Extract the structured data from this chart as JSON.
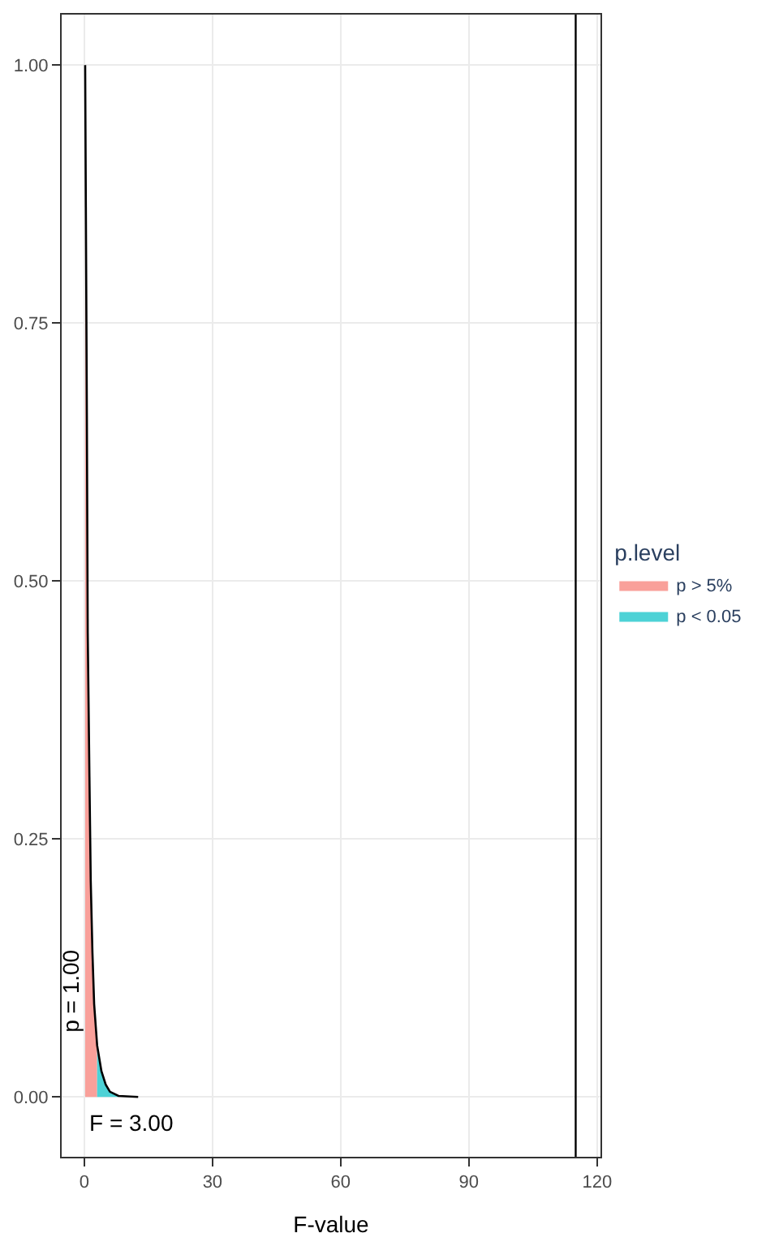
{
  "chart_data": {
    "type": "area",
    "xlabel": "F-value",
    "legend_title": "p.level",
    "legend": "right",
    "grid": true,
    "series": [
      {
        "name": "p > 5%",
        "color": "#f9a09a",
        "x": [
          0.2,
          0.6,
          0.8,
          1.2,
          1.5,
          1.9,
          2.3,
          3.0
        ],
        "values": [
          1.0,
          0.66,
          0.45,
          0.31,
          0.21,
          0.14,
          0.09,
          0.05
        ]
      },
      {
        "name": "p < 0.05",
        "color": "#4dd2d6",
        "x": [
          3.0,
          4.0,
          5.0,
          6.0,
          8.0
        ],
        "values": [
          0.05,
          0.025,
          0.012,
          0.005,
          0.001
        ]
      },
      {
        "type": "line",
        "color": "#000000",
        "x": [
          0.2,
          0.6,
          0.8,
          1.2,
          1.5,
          1.9,
          2.3,
          3.0,
          4.0,
          5.0,
          6.0,
          8.0,
          12.6
        ],
        "values": [
          1.0,
          0.66,
          0.45,
          0.31,
          0.21,
          0.14,
          0.09,
          0.05,
          0.025,
          0.012,
          0.005,
          0.001,
          0.0
        ]
      }
    ],
    "ref_lines": [
      {
        "axis": "x",
        "value": 115,
        "color": "#000000"
      }
    ],
    "annotations": [
      {
        "text": "p = 1.00",
        "x": 0,
        "y": 0.06
      },
      "F = 3.00"
    ],
    "xlim": [
      -5.3,
      120.8
    ],
    "ylim": [
      -0.058,
      1.049
    ],
    "xticks": [
      0,
      30,
      60,
      90,
      120
    ],
    "yticks": [
      {
        "value": 0,
        "label": "0.00"
      },
      {
        "value": 0.25,
        "label": "0.25"
      },
      {
        "value": 0.5,
        "label": "0.50"
      },
      {
        "value": 0.75,
        "label": "0.75"
      },
      {
        "value": 1,
        "label": "1.00"
      }
    ]
  }
}
